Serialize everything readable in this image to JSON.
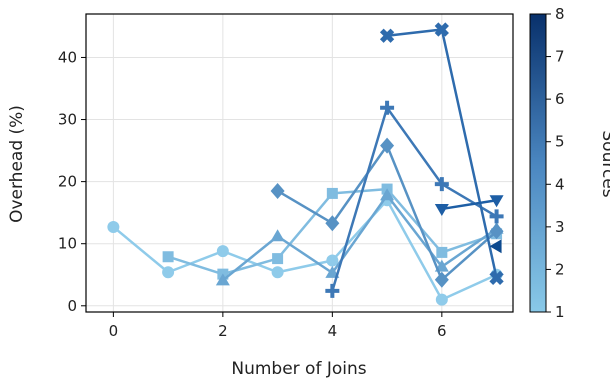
{
  "chart_data": {
    "type": "line",
    "xlabel": "Number of Joins",
    "ylabel": "Overhead (%)",
    "xlim": [
      -0.5,
      7.3
    ],
    "ylim": [
      -1,
      47
    ],
    "xticks": [
      0,
      2,
      4,
      6
    ],
    "yticks": [
      0,
      10,
      20,
      30,
      40
    ],
    "grid": true,
    "colorbar": {
      "label": "Sources",
      "min": 1,
      "max": 8,
      "ticks": [
        1,
        2,
        3,
        4,
        5,
        6,
        7,
        8
      ],
      "color_low": "#89c9e8",
      "color_high": "#08306b"
    },
    "series": [
      {
        "sources": 1,
        "marker": "circle",
        "color": "#8fcbea",
        "x": [
          0,
          1,
          2,
          3,
          4,
          5,
          6,
          7
        ],
        "y": [
          12.7,
          5.4,
          8.8,
          5.4,
          7.3,
          17.0,
          1.0,
          5.0
        ]
      },
      {
        "sources": 2,
        "marker": "square",
        "color": "#80bce0",
        "x": [
          1,
          2,
          3,
          4,
          5,
          6,
          7
        ],
        "y": [
          7.9,
          5.1,
          7.6,
          18.1,
          18.8,
          8.6,
          11.6
        ]
      },
      {
        "sources": 3,
        "marker": "triangle-up",
        "color": "#6aa6d2",
        "x": [
          2,
          3,
          4,
          5,
          6,
          7
        ],
        "y": [
          4.1,
          11.2,
          5.3,
          17.8,
          6.3,
          12.4
        ]
      },
      {
        "sources": 3.8,
        "marker": "diamond",
        "color": "#5792c4",
        "x": [
          3,
          4,
          5,
          6,
          7
        ],
        "y": [
          18.5,
          13.3,
          25.8,
          4.2,
          12.0
        ]
      },
      {
        "sources": 4.8,
        "marker": "plus",
        "color": "#3d78b6",
        "x": [
          4,
          5,
          6,
          7
        ],
        "y": [
          2.4,
          31.9,
          19.6,
          14.4
        ]
      },
      {
        "sources": 5.6,
        "marker": "x-filled",
        "color": "#2e6bad",
        "x": [
          5,
          6,
          7
        ],
        "y": [
          43.5,
          44.5,
          4.5
        ]
      },
      {
        "sources": 6.5,
        "marker": "triangle-down",
        "color": "#1d5ea5",
        "x": [
          6,
          7
        ],
        "y": [
          15.6,
          17.0
        ]
      },
      {
        "sources": 7.5,
        "marker": "triangle-left",
        "color": "#0d4a8f",
        "x": [
          7
        ],
        "y": [
          9.6
        ]
      }
    ]
  }
}
